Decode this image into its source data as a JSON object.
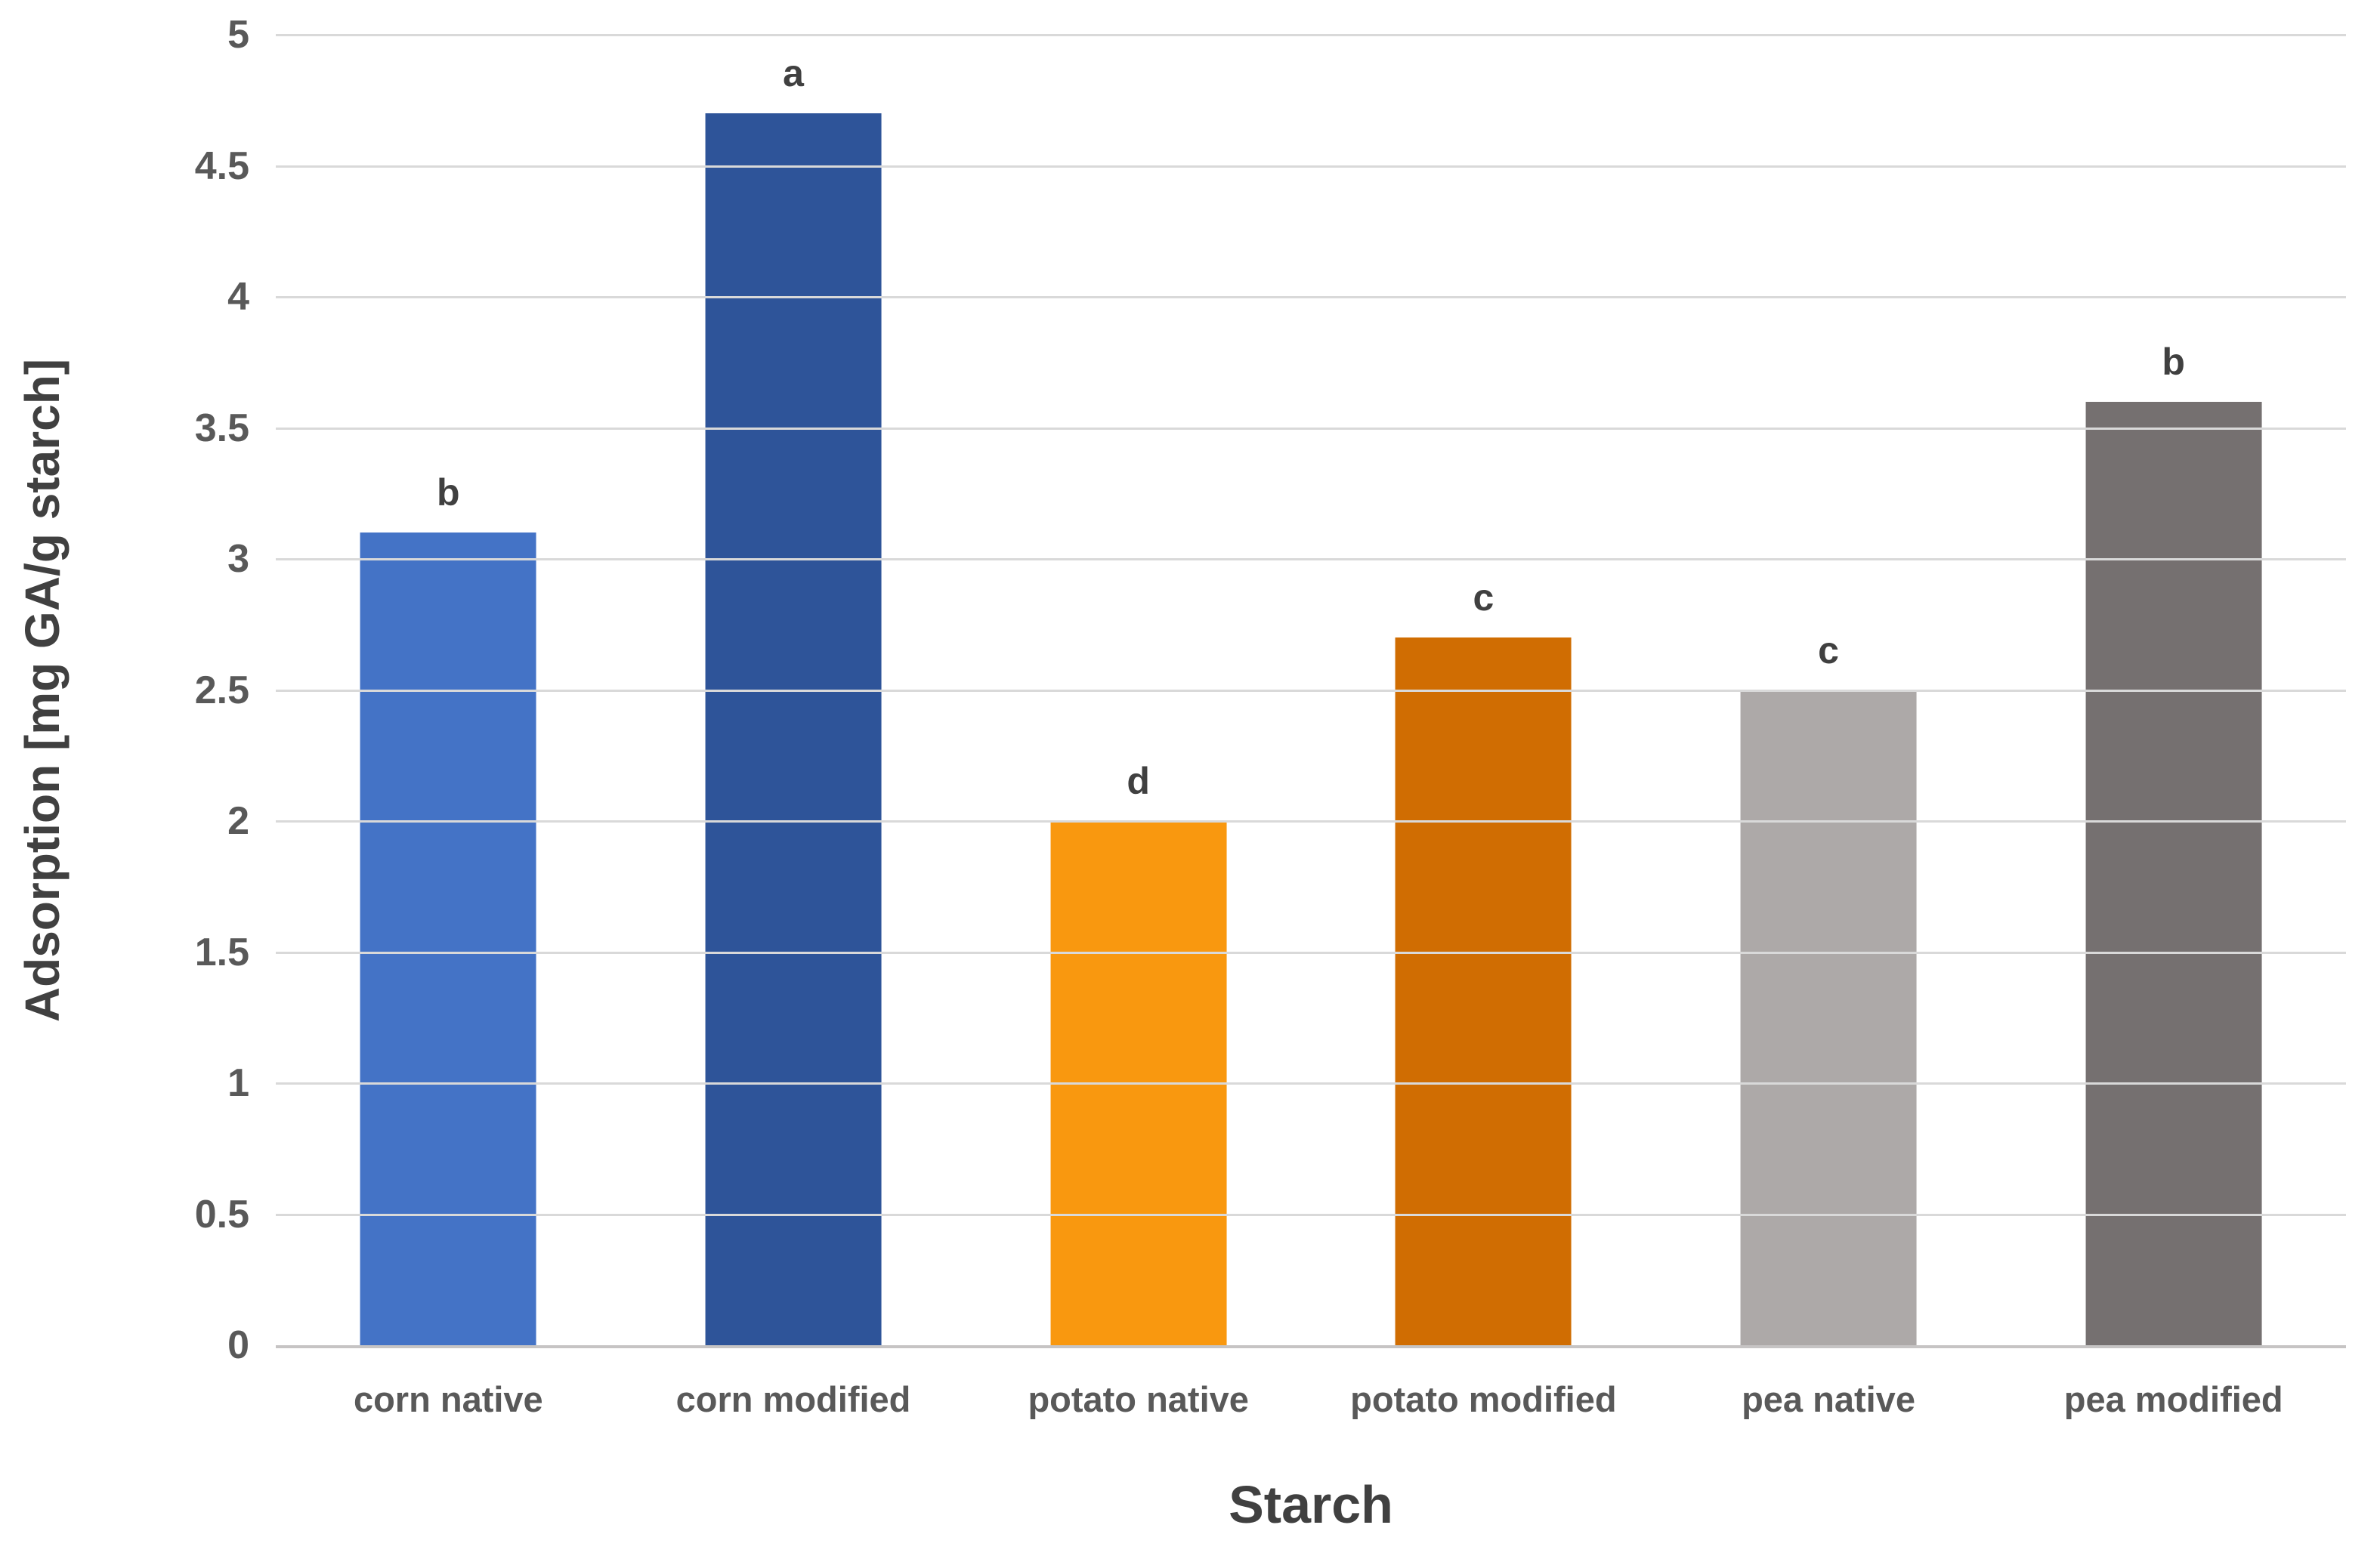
{
  "chart_data": {
    "type": "bar",
    "title": "",
    "xlabel": "Starch",
    "ylabel": "Adsorption [mg GA/g starch]",
    "ylim": [
      0,
      5
    ],
    "ytick_step": 0.5,
    "yticks": [
      {
        "value": 0,
        "label": "0"
      },
      {
        "value": 0.5,
        "label": "0.5"
      },
      {
        "value": 1,
        "label": "1"
      },
      {
        "value": 1.5,
        "label": "1.5"
      },
      {
        "value": 2,
        "label": "2"
      },
      {
        "value": 2.5,
        "label": "2.5"
      },
      {
        "value": 3,
        "label": "3"
      },
      {
        "value": 3.5,
        "label": "3.5"
      },
      {
        "value": 4,
        "label": "4"
      },
      {
        "value": 4.5,
        "label": "4.5"
      },
      {
        "value": 5,
        "label": "5"
      }
    ],
    "grid": true,
    "legend_position": "none",
    "categories": [
      "corn native",
      "corn modified",
      "potato native",
      "potato modified",
      "pea native",
      "pea modified"
    ],
    "values": [
      3.1,
      4.7,
      2.0,
      2.7,
      2.5,
      3.6
    ],
    "significance_letters": [
      "b",
      "a",
      "d",
      "c",
      "c",
      "b"
    ],
    "bar_colors": [
      "#4473C6",
      "#2E5499",
      "#F9980F",
      "#D06D02",
      "#ADA9A8",
      "#757070"
    ],
    "colors": {
      "gridline": "#D9D9D9",
      "axis_line": "#C6C4C4",
      "tick_label": "#595959",
      "category_label": "#595959",
      "axis_title": "#404040",
      "background": "#FFFFFF"
    }
  }
}
